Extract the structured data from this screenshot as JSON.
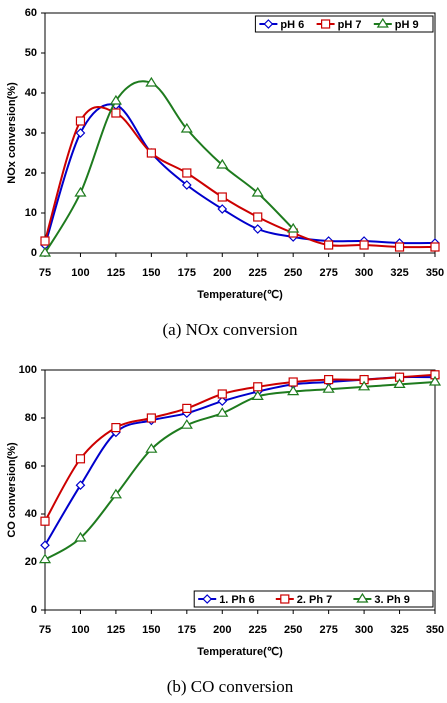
{
  "chart_data": [
    {
      "type": "line",
      "caption": "(a)  NOx  conversion",
      "xlabel": "Temperature(℃)",
      "ylabel": "NOx conversion(%)",
      "x": [
        75,
        100,
        125,
        150,
        175,
        200,
        225,
        250,
        275,
        300,
        325,
        350
      ],
      "xlim": [
        75,
        350
      ],
      "xticks": [
        75,
        100,
        125,
        150,
        175,
        200,
        225,
        250,
        275,
        300,
        325,
        350
      ],
      "ylim": [
        0,
        60
      ],
      "yticks": [
        0,
        10,
        20,
        30,
        40,
        50,
        60
      ],
      "legend": "upper right",
      "series": [
        {
          "name": "pH 6",
          "color": "#0000cc",
          "marker": "diamond",
          "values": [
            2,
            30,
            37,
            25,
            17,
            11,
            6,
            4,
            3,
            3,
            2.5,
            2.5
          ]
        },
        {
          "name": "pH 7",
          "color": "#cc0000",
          "marker": "square",
          "values": [
            3,
            33,
            35,
            25,
            20,
            14,
            9,
            5,
            2,
            2,
            1.5,
            1.5
          ]
        },
        {
          "name": "pH 9",
          "color": "#1e7b1e",
          "marker": "triangle",
          "values": [
            0,
            15,
            38,
            42.5,
            31,
            22,
            15,
            6,
            null,
            null,
            null,
            null
          ]
        }
      ]
    },
    {
      "type": "line",
      "caption": "(b)  CO  conversion",
      "xlabel": "Temperature(℃)",
      "ylabel": "CO conversion(%)",
      "x": [
        75,
        100,
        125,
        150,
        175,
        200,
        225,
        250,
        275,
        300,
        325,
        350
      ],
      "xlim": [
        75,
        350
      ],
      "xticks": [
        75,
        100,
        125,
        150,
        175,
        200,
        225,
        250,
        275,
        300,
        325,
        350
      ],
      "ylim": [
        0,
        100
      ],
      "yticks": [
        0,
        20,
        40,
        60,
        80,
        100
      ],
      "legend": "lower right",
      "series": [
        {
          "name": "1. Ph 6",
          "color": "#0000cc",
          "marker": "diamond",
          "values": [
            27,
            52,
            74,
            79,
            82,
            87,
            91,
            94,
            95,
            96,
            97,
            97
          ]
        },
        {
          "name": "2. Ph 7",
          "color": "#cc0000",
          "marker": "square",
          "values": [
            37,
            63,
            76,
            80,
            84,
            90,
            93,
            95,
            96,
            96,
            97,
            98
          ]
        },
        {
          "name": "3. Ph 9",
          "color": "#1e7b1e",
          "marker": "triangle",
          "values": [
            21,
            30,
            48,
            67,
            77,
            82,
            89,
            91,
            92,
            93,
            94,
            95
          ]
        }
      ]
    }
  ]
}
